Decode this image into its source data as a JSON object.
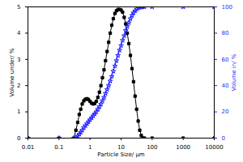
{
  "chart_data": {
    "type": "line",
    "x_label": "Particle Size/ µm",
    "y_label": "Volume under/ %",
    "y2_label": "Volume in/ %",
    "log": "x",
    "grid": false,
    "xlim": [
      0.01,
      10000
    ],
    "xticks": [
      0.01,
      0.1,
      1,
      10,
      100,
      1000,
      10000
    ],
    "ylim": [
      0,
      5
    ],
    "yticks": [
      0,
      1,
      2,
      3,
      4,
      5
    ],
    "y2lim": [
      0,
      100
    ],
    "y2ticks": [
      0,
      20,
      40,
      60,
      80,
      100
    ],
    "x": [
      0.01,
      0.1,
      0.3,
      0.35,
      0.4,
      0.45,
      0.5,
      0.56,
      0.63,
      0.71,
      0.8,
      0.89,
      1.0,
      1.12,
      1.26,
      1.41,
      1.58,
      1.78,
      2.0,
      2.24,
      2.51,
      2.82,
      3.16,
      3.55,
      3.98,
      4.47,
      5.01,
      5.62,
      6.31,
      7.08,
      7.94,
      8.91,
      10,
      11.2,
      12.6,
      14.1,
      15.8,
      17.8,
      20,
      22.4,
      25.1,
      28.2,
      31.6,
      35.5,
      39.8,
      44.7,
      50.1,
      56.2,
      100,
      1000,
      10000
    ],
    "series": [
      {
        "name": "Volume under",
        "color": "#000000",
        "marker": "square",
        "line_style": "solid",
        "values": [
          0,
          0,
          0,
          0.3,
          0.6,
          0.9,
          1.1,
          1.3,
          1.42,
          1.48,
          1.5,
          1.47,
          1.4,
          1.33,
          1.3,
          1.32,
          1.4,
          1.55,
          1.75,
          2.0,
          2.3,
          2.6,
          2.95,
          3.3,
          3.65,
          4.0,
          4.3,
          4.55,
          4.75,
          4.85,
          4.9,
          4.9,
          4.88,
          4.8,
          4.6,
          4.35,
          4.0,
          3.6,
          3.15,
          2.65,
          2.15,
          1.6,
          1.1,
          0.65,
          0.3,
          0.1,
          0,
          0,
          0,
          0,
          0
        ]
      },
      {
        "name": "Volume in",
        "color": "#1f1fff",
        "marker": "star",
        "line_style": "solid",
        "axis": "y2",
        "values": [
          0,
          0,
          0,
          0.5,
          1.5,
          3,
          4.5,
          6,
          8,
          9.5,
          11,
          12.5,
          14,
          15.5,
          17,
          18.5,
          20,
          22,
          24,
          26,
          28.5,
          31,
          34,
          37,
          40,
          43.5,
          47,
          51,
          55,
          59,
          63,
          67,
          70.5,
          74.5,
          78,
          82,
          85,
          88,
          91,
          93.5,
          95.5,
          97,
          98.3,
          99.2,
          99.7,
          99.9,
          100,
          100,
          100,
          100,
          100
        ]
      }
    ]
  }
}
